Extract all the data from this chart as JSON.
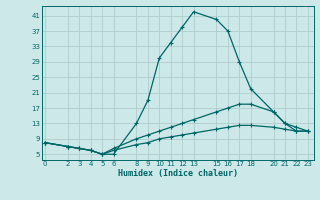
{
  "xlabel": "Humidex (Indice chaleur)",
  "bg_color": "#cce8e8",
  "grid_color": "#b0cccc",
  "line_color": "#006666",
  "series": [
    {
      "x": [
        0,
        2,
        3,
        4,
        5,
        6,
        8,
        9,
        10,
        11,
        12,
        13,
        15,
        16,
        17,
        18,
        20,
        21,
        22,
        23
      ],
      "y": [
        8,
        7,
        6.5,
        6,
        5,
        5,
        13,
        19,
        30,
        34,
        38,
        42,
        40,
        37,
        29,
        22,
        16,
        13,
        11,
        11
      ]
    },
    {
      "x": [
        0,
        2,
        3,
        4,
        5,
        6,
        8,
        9,
        10,
        11,
        12,
        13,
        15,
        16,
        17,
        18,
        20,
        21,
        22,
        23
      ],
      "y": [
        8,
        7,
        6.5,
        6,
        5,
        6.5,
        9,
        10,
        11,
        12,
        13,
        14,
        16,
        17,
        18,
        18,
        16,
        13,
        12,
        11
      ]
    },
    {
      "x": [
        0,
        2,
        3,
        4,
        5,
        6,
        8,
        9,
        10,
        11,
        12,
        13,
        15,
        16,
        17,
        18,
        20,
        21,
        22,
        23
      ],
      "y": [
        8,
        7,
        6.5,
        6,
        5,
        6,
        7.5,
        8,
        9,
        9.5,
        10,
        10.5,
        11.5,
        12,
        12.5,
        12.5,
        12,
        11.5,
        11,
        11
      ]
    }
  ],
  "xticks": [
    0,
    2,
    3,
    4,
    5,
    6,
    8,
    9,
    10,
    11,
    12,
    13,
    15,
    16,
    17,
    18,
    20,
    21,
    22,
    23
  ],
  "yticks": [
    5,
    9,
    13,
    17,
    21,
    25,
    29,
    33,
    37,
    41
  ],
  "xlim": [
    -0.3,
    23.5
  ],
  "ylim": [
    3.5,
    43.5
  ]
}
